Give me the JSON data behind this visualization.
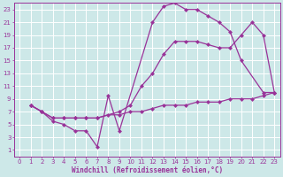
{
  "background_color": "#cde8e8",
  "grid_color": "#ffffff",
  "line_color": "#993399",
  "xlabel": "Windchill (Refroidissement éolien,°C)",
  "xlim": [
    -0.5,
    23.5
  ],
  "ylim": [
    0,
    24
  ],
  "xticks": [
    0,
    1,
    2,
    3,
    4,
    5,
    6,
    7,
    8,
    9,
    10,
    11,
    12,
    13,
    14,
    15,
    16,
    17,
    18,
    19,
    20,
    21,
    22,
    23
  ],
  "yticks": [
    1,
    3,
    5,
    7,
    9,
    11,
    13,
    15,
    17,
    19,
    21,
    23
  ],
  "line1_x": [
    1,
    2,
    3,
    4,
    5,
    6,
    7,
    8,
    9,
    12,
    13,
    14,
    15,
    16,
    17,
    18,
    19,
    20,
    22,
    23
  ],
  "line1_y": [
    8,
    7,
    5.5,
    5,
    4,
    4,
    1.5,
    9.5,
    4,
    21,
    23.5,
    24,
    23,
    23,
    22,
    21,
    19.5,
    15,
    10,
    10
  ],
  "line2_x": [
    1,
    2,
    3,
    4,
    5,
    6,
    7,
    9,
    10,
    11,
    12,
    13,
    14,
    15,
    16,
    17,
    18,
    19,
    20,
    21,
    22,
    23
  ],
  "line2_y": [
    8,
    7,
    6,
    6,
    6,
    6,
    6,
    7,
    8,
    11,
    13,
    16,
    18,
    18,
    18,
    17.5,
    17,
    17,
    19,
    21,
    19,
    10
  ],
  "line3_x": [
    1,
    2,
    3,
    4,
    5,
    6,
    7,
    8,
    9,
    10,
    11,
    12,
    13,
    14,
    15,
    16,
    17,
    18,
    19,
    20,
    21,
    22,
    23
  ],
  "line3_y": [
    8,
    7,
    6,
    6,
    6,
    6,
    6,
    6.5,
    6.5,
    7,
    7,
    7.5,
    8,
    8,
    8,
    8.5,
    8.5,
    8.5,
    9,
    9,
    9,
    9.5,
    10
  ],
  "marker": "D",
  "marker_size": 2.5,
  "line_width": 0.9,
  "tick_fontsize": 5.0,
  "label_fontsize": 5.5
}
